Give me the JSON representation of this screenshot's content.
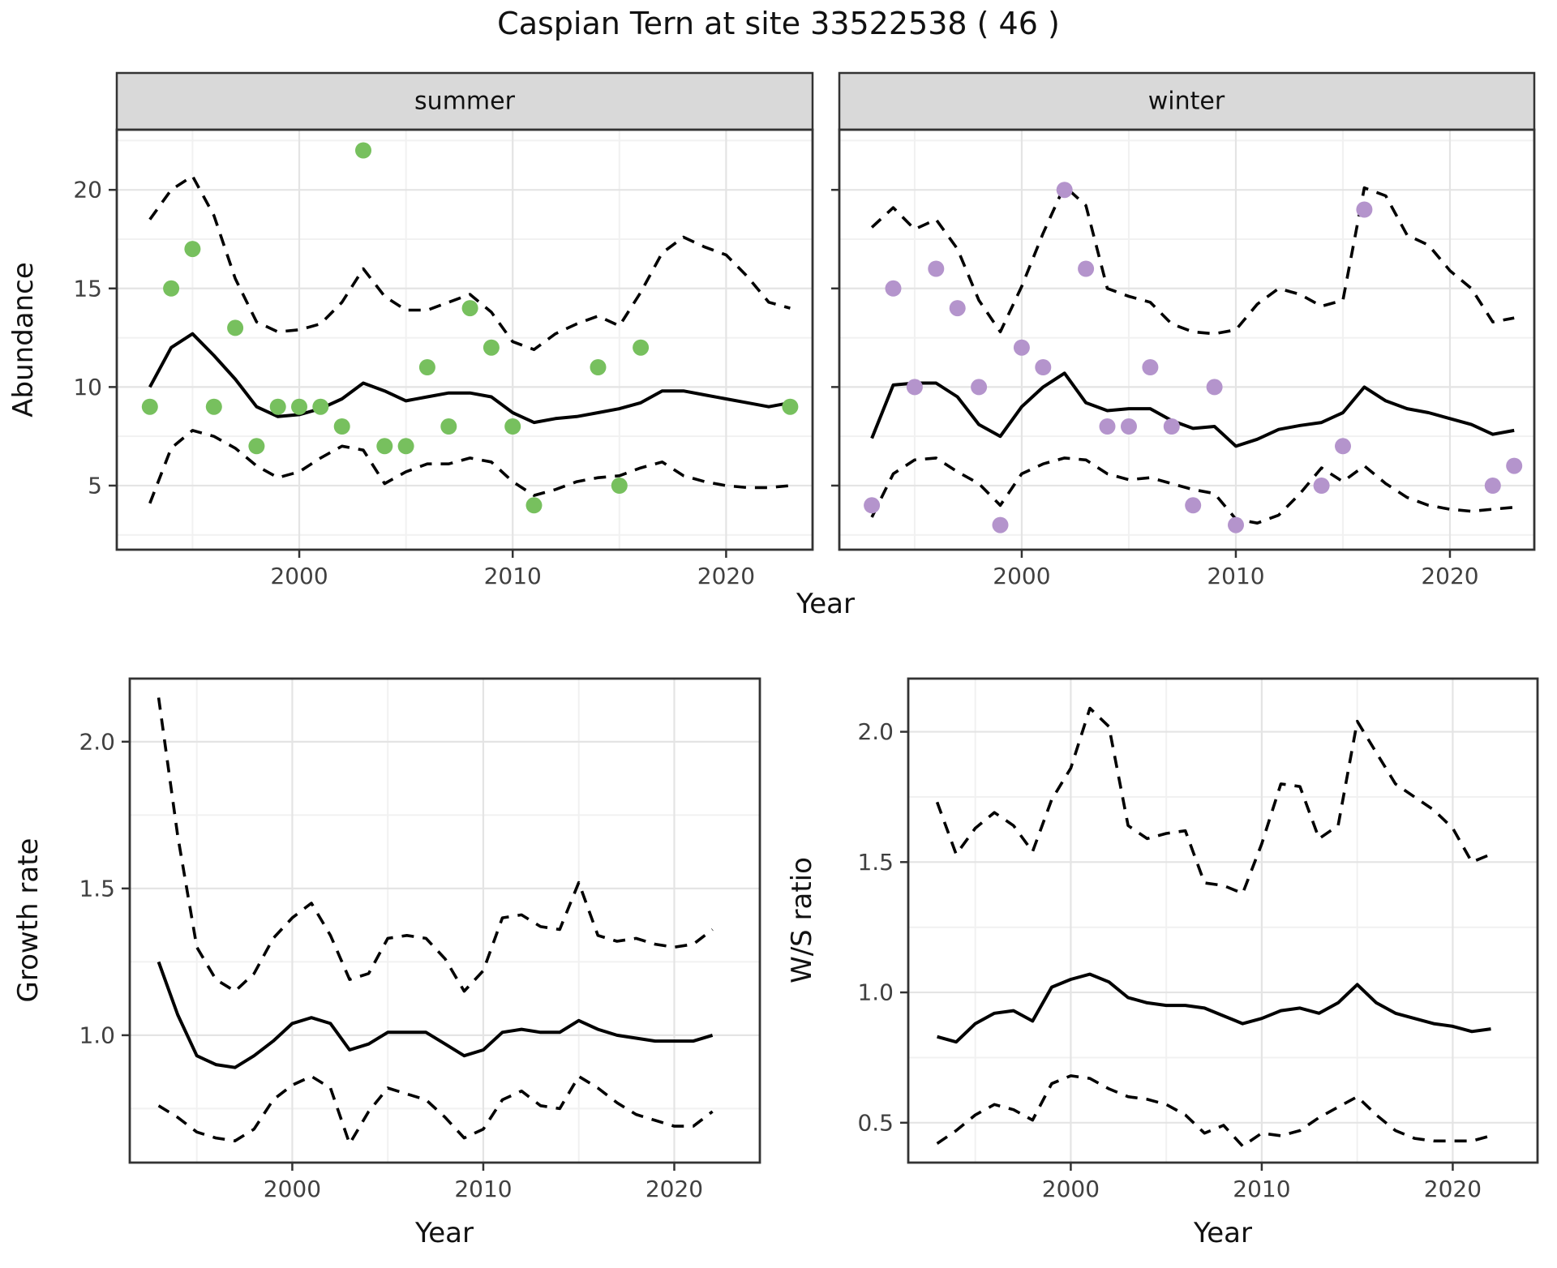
{
  "title": "Caspian Tern at site 33522538 ( 46 )",
  "top": {
    "ylabel": "Abundance",
    "xlabel": "Year",
    "facets": [
      "summer",
      "winter"
    ]
  },
  "bottom_left": {
    "ylabel": "Growth rate",
    "xlabel": "Year"
  },
  "bottom_right": {
    "ylabel": "W/S ratio",
    "xlabel": "Year"
  },
  "colors": {
    "summer_point": "#77c05e",
    "winter_point": "#b494cc",
    "line": "#000000",
    "grid_major": "#e4e4e4",
    "grid_minor": "#f1f1f1",
    "strip_bg": "#d9d9d9",
    "panel_border": "#333333",
    "tick_text": "#404040"
  },
  "chart_data": [
    {
      "id": "summer",
      "type": "scatter",
      "facet_label": "summer",
      "xlabel": "Year",
      "ylabel": "Abundance",
      "xlim": [
        1991.45,
        2024.05
      ],
      "ylim": [
        1.75,
        23.05
      ],
      "xticks": [
        2000,
        2010,
        2020
      ],
      "xtick_labels": [
        "2000",
        "2010",
        "2020"
      ],
      "xminor": [
        1995,
        2005,
        2015
      ],
      "yticks": [
        20,
        15,
        10,
        5
      ],
      "ytick_labels": [
        "20",
        "15",
        "10",
        "5"
      ],
      "yminor": [
        22.5,
        17.5,
        12.5,
        7.5,
        2.5
      ],
      "show_ytick_labels": true,
      "legend": "none",
      "grid": true,
      "point_color": "#77c05e",
      "points": {
        "years": [
          1993,
          1994,
          1995,
          1996,
          1997,
          1998,
          1999,
          2000,
          2001,
          2002,
          2003,
          2004,
          2005,
          2006,
          2007,
          2008,
          2009,
          2010,
          2011,
          2014,
          2015,
          2016,
          2023
        ],
        "values": [
          9,
          15,
          17,
          9,
          13,
          7,
          9,
          9,
          9,
          8,
          22,
          7,
          7,
          11,
          8,
          14,
          12,
          8,
          4,
          11,
          5,
          12,
          9
        ]
      },
      "fit": {
        "years": [
          1993,
          1994,
          1995,
          1996,
          1997,
          1998,
          1999,
          2000,
          2001,
          2002,
          2003,
          2004,
          2005,
          2006,
          2007,
          2008,
          2009,
          2010,
          2011,
          2012,
          2013,
          2014,
          2015,
          2016,
          2017,
          2018,
          2019,
          2020,
          2021,
          2022,
          2023
        ],
        "values": [
          10.0,
          12.0,
          12.7,
          11.6,
          10.4,
          9.0,
          8.5,
          8.6,
          8.9,
          9.4,
          10.2,
          9.8,
          9.3,
          9.5,
          9.7,
          9.7,
          9.5,
          8.7,
          8.2,
          8.4,
          8.5,
          8.7,
          8.9,
          9.2,
          9.8,
          9.8,
          9.6,
          9.4,
          9.2,
          9.0,
          9.2
        ]
      },
      "ci_upper": {
        "years": [
          1993,
          1994,
          1995,
          1996,
          1997,
          1998,
          1999,
          2000,
          2001,
          2002,
          2003,
          2004,
          2005,
          2006,
          2007,
          2008,
          2009,
          2010,
          2011,
          2012,
          2013,
          2014,
          2015,
          2016,
          2017,
          2018,
          2019,
          2020,
          2021,
          2022,
          2023
        ],
        "values": [
          18.5,
          20.0,
          20.7,
          18.7,
          15.5,
          13.3,
          12.8,
          12.9,
          13.2,
          14.3,
          16.0,
          14.6,
          13.9,
          13.9,
          14.3,
          14.7,
          13.8,
          12.3,
          11.9,
          12.7,
          13.2,
          13.6,
          13.1,
          14.8,
          16.8,
          17.6,
          17.1,
          16.7,
          15.6,
          14.3,
          14.0
        ]
      },
      "ci_lower": {
        "years": [
          1993,
          1994,
          1995,
          1996,
          1997,
          1998,
          1999,
          2000,
          2001,
          2002,
          2003,
          2004,
          2005,
          2006,
          2007,
          2008,
          2009,
          2010,
          2011,
          2012,
          2013,
          2014,
          2015,
          2016,
          2017,
          2018,
          2019,
          2020,
          2021,
          2022,
          2023
        ],
        "values": [
          4.1,
          6.9,
          7.8,
          7.5,
          6.9,
          6.0,
          5.4,
          5.7,
          6.4,
          7.0,
          6.8,
          5.1,
          5.7,
          6.1,
          6.1,
          6.4,
          6.2,
          5.2,
          4.5,
          4.8,
          5.2,
          5.4,
          5.5,
          5.9,
          6.2,
          5.5,
          5.2,
          5.0,
          4.9,
          4.9,
          5.0
        ]
      }
    },
    {
      "id": "winter",
      "type": "scatter",
      "facet_label": "winter",
      "xlabel": "Year",
      "ylabel": "Abundance",
      "xlim": [
        1991.48,
        2023.94
      ],
      "ylim": [
        1.75,
        23.05
      ],
      "xticks": [
        2000,
        2010,
        2020
      ],
      "xtick_labels": [
        "2000",
        "2010",
        "2020"
      ],
      "xminor": [
        1995,
        2005,
        2015
      ],
      "yticks": [
        20,
        15,
        10,
        5
      ],
      "ytick_labels": [
        "20",
        "15",
        "10",
        "5"
      ],
      "yminor": [
        22.5,
        17.5,
        12.5,
        7.5,
        2.5
      ],
      "show_ytick_labels": false,
      "legend": "none",
      "grid": true,
      "point_color": "#b494cc",
      "points": {
        "years": [
          1993,
          1994,
          1995,
          1996,
          1997,
          1998,
          1999,
          2000,
          2001,
          2002,
          2003,
          2004,
          2005,
          2006,
          2007,
          2008,
          2009,
          2010,
          2014,
          2015,
          2016,
          2022,
          2023
        ],
        "values": [
          4,
          15,
          10,
          16,
          14,
          10,
          3,
          12,
          11,
          20,
          16,
          8,
          8,
          11,
          8,
          4,
          10,
          3,
          5,
          7,
          19,
          5,
          6
        ]
      },
      "fit": {
        "years": [
          1993,
          1994,
          1995,
          1996,
          1997,
          1998,
          1999,
          2000,
          2001,
          2002,
          2003,
          2004,
          2005,
          2006,
          2007,
          2008,
          2009,
          2010,
          2011,
          2012,
          2013,
          2014,
          2015,
          2016,
          2017,
          2018,
          2019,
          2020,
          2021,
          2022,
          2023
        ],
        "values": [
          7.4,
          10.1,
          10.2,
          10.2,
          9.5,
          8.1,
          7.5,
          9.0,
          10.0,
          10.7,
          9.2,
          8.8,
          8.9,
          8.9,
          8.3,
          7.9,
          8.0,
          7.0,
          7.35,
          7.85,
          8.05,
          8.2,
          8.7,
          10.0,
          9.3,
          8.9,
          8.7,
          8.4,
          8.1,
          7.6,
          7.8
        ]
      },
      "ci_upper": {
        "years": [
          1993,
          1994,
          1995,
          1996,
          1997,
          1998,
          1999,
          2000,
          2001,
          2002,
          2003,
          2004,
          2005,
          2006,
          2007,
          2008,
          2009,
          2010,
          2011,
          2012,
          2013,
          2014,
          2015,
          2016,
          2017,
          2018,
          2019,
          2020,
          2021,
          2022,
          2023
        ],
        "values": [
          18.1,
          19.1,
          18.0,
          18.5,
          17.0,
          14.4,
          12.8,
          15.1,
          17.8,
          20.2,
          19.2,
          15.0,
          14.6,
          14.3,
          13.2,
          12.8,
          12.7,
          12.9,
          14.2,
          15.0,
          14.7,
          14.1,
          14.4,
          20.1,
          19.7,
          17.7,
          17.2,
          15.9,
          15.0,
          13.3,
          13.5
        ]
      },
      "ci_lower": {
        "years": [
          1993,
          1994,
          1995,
          1996,
          1997,
          1998,
          1999,
          2000,
          2001,
          2002,
          2003,
          2004,
          2005,
          2006,
          2007,
          2008,
          2009,
          2010,
          2011,
          2012,
          2013,
          2014,
          2015,
          2016,
          2017,
          2018,
          2019,
          2020,
          2021,
          2022,
          2023
        ],
        "values": [
          3.4,
          5.6,
          6.3,
          6.4,
          5.7,
          5.1,
          4.0,
          5.6,
          6.1,
          6.4,
          6.3,
          5.6,
          5.3,
          5.4,
          5.1,
          4.8,
          4.6,
          3.3,
          3.1,
          3.5,
          4.6,
          5.9,
          5.2,
          6.0,
          5.1,
          4.4,
          4.0,
          3.8,
          3.7,
          3.8,
          3.9
        ]
      }
    },
    {
      "id": "growth",
      "type": "line",
      "facet_label": "",
      "xlabel": "Year",
      "ylabel": "Growth rate",
      "xlim": [
        1991.49,
        2024.48
      ],
      "ylim": [
        0.566,
        2.215
      ],
      "xticks": [
        2000,
        2010,
        2020
      ],
      "xtick_labels": [
        "2000",
        "2010",
        "2020"
      ],
      "xminor": [
        1995,
        2005,
        2015
      ],
      "yticks": [
        2.0,
        1.5,
        1.0
      ],
      "ytick_labels": [
        "2.0",
        "1.5",
        "1.0"
      ],
      "yminor": [
        1.75,
        1.25,
        0.75
      ],
      "show_ytick_labels": true,
      "legend": "none",
      "grid": true,
      "fit": {
        "years": [
          1993,
          1994,
          1995,
          1996,
          1997,
          1998,
          1999,
          2000,
          2001,
          2002,
          2003,
          2004,
          2005,
          2006,
          2007,
          2008,
          2009,
          2010,
          2011,
          2012,
          2013,
          2014,
          2015,
          2016,
          2017,
          2018,
          2019,
          2020,
          2021,
          2022
        ],
        "values": [
          1.25,
          1.07,
          0.93,
          0.9,
          0.89,
          0.93,
          0.98,
          1.04,
          1.06,
          1.04,
          0.95,
          0.97,
          1.01,
          1.01,
          1.01,
          0.97,
          0.93,
          0.95,
          1.01,
          1.02,
          1.01,
          1.01,
          1.05,
          1.02,
          1.0,
          0.99,
          0.98,
          0.98,
          0.98,
          1.0
        ]
      },
      "ci_upper": {
        "years": [
          1993,
          1994,
          1995,
          1996,
          1997,
          1998,
          1999,
          2000,
          2001,
          2002,
          2003,
          2004,
          2005,
          2006,
          2007,
          2008,
          2009,
          2010,
          2011,
          2012,
          2013,
          2014,
          2015,
          2016,
          2017,
          2018,
          2019,
          2020,
          2021,
          2022
        ],
        "values": [
          2.15,
          1.68,
          1.3,
          1.19,
          1.15,
          1.21,
          1.33,
          1.4,
          1.45,
          1.34,
          1.19,
          1.21,
          1.33,
          1.34,
          1.33,
          1.26,
          1.15,
          1.22,
          1.4,
          1.41,
          1.37,
          1.36,
          1.52,
          1.34,
          1.32,
          1.33,
          1.31,
          1.3,
          1.31,
          1.36
        ]
      },
      "ci_lower": {
        "years": [
          1993,
          1994,
          1995,
          1996,
          1997,
          1998,
          1999,
          2000,
          2001,
          2002,
          2003,
          2004,
          2005,
          2006,
          2007,
          2008,
          2009,
          2010,
          2011,
          2012,
          2013,
          2014,
          2015,
          2016,
          2017,
          2018,
          2019,
          2020,
          2021,
          2022
        ],
        "values": [
          0.76,
          0.72,
          0.67,
          0.65,
          0.64,
          0.68,
          0.78,
          0.83,
          0.86,
          0.82,
          0.63,
          0.74,
          0.82,
          0.8,
          0.78,
          0.72,
          0.65,
          0.68,
          0.78,
          0.81,
          0.76,
          0.75,
          0.86,
          0.82,
          0.77,
          0.73,
          0.71,
          0.69,
          0.69,
          0.74
        ]
      }
    },
    {
      "id": "ws",
      "type": "line",
      "facet_label": "",
      "xlabel": "Year",
      "ylabel": "W/S ratio",
      "xlim": [
        1991.49,
        2024.44
      ],
      "ylim": [
        0.347,
        2.204
      ],
      "xticks": [
        2000,
        2010,
        2020
      ],
      "xtick_labels": [
        "2000",
        "2010",
        "2020"
      ],
      "xminor": [
        1995,
        2005,
        2015
      ],
      "yticks": [
        2.0,
        1.5,
        1.0,
        0.5
      ],
      "ytick_labels": [
        "2.0",
        "1.5",
        "1.0",
        "0.5"
      ],
      "yminor": [
        1.75,
        1.25,
        0.75
      ],
      "show_ytick_labels": true,
      "legend": "none",
      "grid": true,
      "fit": {
        "years": [
          1993,
          1994,
          1995,
          1996,
          1997,
          1998,
          1999,
          2000,
          2001,
          2002,
          2003,
          2004,
          2005,
          2006,
          2007,
          2008,
          2009,
          2010,
          2011,
          2012,
          2013,
          2014,
          2015,
          2016,
          2017,
          2018,
          2019,
          2020,
          2021,
          2022
        ],
        "values": [
          0.83,
          0.81,
          0.88,
          0.92,
          0.93,
          0.89,
          1.02,
          1.05,
          1.07,
          1.04,
          0.98,
          0.96,
          0.95,
          0.95,
          0.94,
          0.91,
          0.88,
          0.9,
          0.93,
          0.94,
          0.92,
          0.96,
          1.03,
          0.96,
          0.92,
          0.9,
          0.88,
          0.87,
          0.85,
          0.86
        ]
      },
      "ci_upper": {
        "years": [
          1993,
          1994,
          1995,
          1996,
          1997,
          1998,
          1999,
          2000,
          2001,
          2002,
          2003,
          2004,
          2005,
          2006,
          2007,
          2008,
          2009,
          2010,
          2011,
          2012,
          2013,
          2014,
          2015,
          2016,
          2017,
          2018,
          2019,
          2020,
          2021,
          2022
        ],
        "values": [
          1.73,
          1.53,
          1.63,
          1.69,
          1.64,
          1.54,
          1.74,
          1.86,
          2.09,
          2.02,
          1.64,
          1.59,
          1.61,
          1.62,
          1.42,
          1.41,
          1.38,
          1.57,
          1.8,
          1.79,
          1.59,
          1.64,
          2.04,
          1.92,
          1.8,
          1.75,
          1.7,
          1.63,
          1.5,
          1.53
        ]
      },
      "ci_lower": {
        "years": [
          1993,
          1994,
          1995,
          1996,
          1997,
          1998,
          1999,
          2000,
          2001,
          2002,
          2003,
          2004,
          2005,
          2006,
          2007,
          2008,
          2009,
          2010,
          2011,
          2012,
          2013,
          2014,
          2015,
          2016,
          2017,
          2018,
          2019,
          2020,
          2021,
          2022
        ],
        "values": [
          0.42,
          0.47,
          0.53,
          0.57,
          0.55,
          0.51,
          0.65,
          0.68,
          0.67,
          0.63,
          0.6,
          0.59,
          0.57,
          0.53,
          0.46,
          0.49,
          0.41,
          0.46,
          0.45,
          0.47,
          0.52,
          0.56,
          0.6,
          0.53,
          0.47,
          0.44,
          0.43,
          0.43,
          0.43,
          0.45
        ]
      }
    }
  ]
}
